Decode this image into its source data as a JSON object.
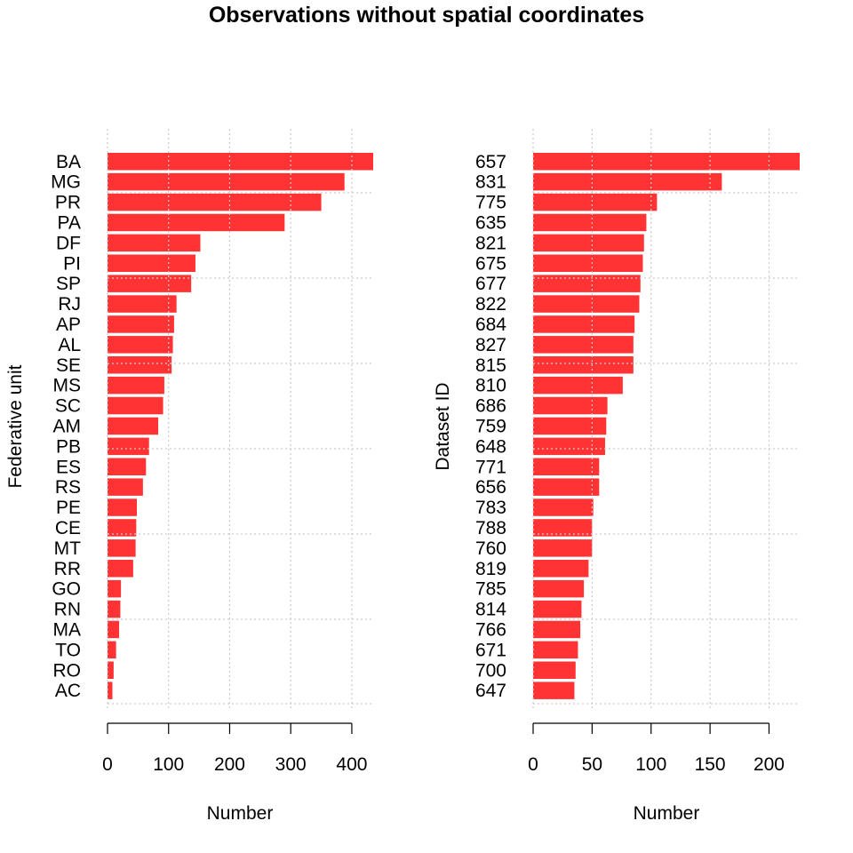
{
  "page": {
    "title": "Observations without spatial coordinates"
  },
  "bar_color": "#FF3333",
  "chart_data": [
    {
      "type": "bar",
      "orientation": "horizontal",
      "title": "",
      "xlabel": "Number",
      "ylabel": "Federative unit",
      "xlim": [
        0,
        435
      ],
      "xticks": [
        0,
        100,
        200,
        300,
        400
      ],
      "grid": true,
      "categories": [
        "BA",
        "MG",
        "PR",
        "PA",
        "DF",
        "PI",
        "SP",
        "RJ",
        "AP",
        "AL",
        "SE",
        "MS",
        "SC",
        "AM",
        "PB",
        "ES",
        "RS",
        "PE",
        "CE",
        "MT",
        "RR",
        "GO",
        "RN",
        "MA",
        "TO",
        "RO",
        "AC"
      ],
      "values": [
        435,
        388,
        350,
        290,
        152,
        144,
        137,
        113,
        109,
        107,
        105,
        93,
        91,
        83,
        68,
        63,
        58,
        48,
        47,
        46,
        42,
        22,
        21,
        19,
        14,
        10,
        8
      ]
    },
    {
      "type": "bar",
      "orientation": "horizontal",
      "title": "",
      "xlabel": "Number",
      "ylabel": "Dataset ID",
      "xlim": [
        0,
        226
      ],
      "xticks": [
        0,
        50,
        100,
        150,
        200
      ],
      "grid": true,
      "categories": [
        "657",
        "831",
        "775",
        "635",
        "821",
        "675",
        "677",
        "822",
        "684",
        "827",
        "815",
        "810",
        "686",
        "759",
        "648",
        "771",
        "656",
        "783",
        "788",
        "760",
        "819",
        "785",
        "814",
        "766",
        "671",
        "700",
        "647"
      ],
      "values": [
        226,
        160,
        105,
        96,
        94,
        93,
        91,
        90,
        86,
        85,
        85,
        76,
        63,
        62,
        61,
        56,
        56,
        51,
        50,
        50,
        47,
        43,
        41,
        40,
        38,
        36,
        35
      ]
    }
  ]
}
